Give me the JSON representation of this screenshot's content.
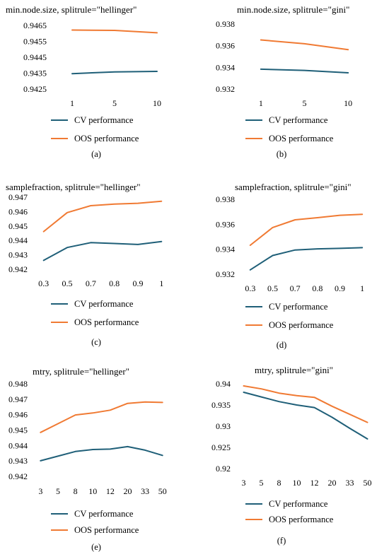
{
  "colors": {
    "cv": "#1f5f78",
    "oos": "#f07a33"
  },
  "chart_data": [
    {
      "type": "line",
      "title": "min.node.size, splitrule=\"hellinger\"",
      "categories": [
        "1",
        "5",
        "10"
      ],
      "yticks": [
        "0.9425",
        "0.9435",
        "0.9445",
        "0.9455",
        "0.9465"
      ],
      "ylim": [
        0.9425,
        0.9465
      ],
      "series": [
        {
          "name": "CV performance",
          "values": [
            0.94347,
            0.94358,
            0.94361
          ]
        },
        {
          "name": "OOS performance",
          "values": [
            0.94621,
            0.94619,
            0.94604
          ]
        }
      ],
      "caption": "(a)"
    },
    {
      "type": "line",
      "title": "min.node.size, splitrule=\"gini\"",
      "categories": [
        "1",
        "5",
        "10"
      ],
      "yticks": [
        "0.932",
        "0.934",
        "0.936",
        "0.938"
      ],
      "ylim": [
        0.932,
        0.938
      ],
      "series": [
        {
          "name": "CV performance",
          "values": [
            0.93383,
            0.93372,
            0.9335
          ]
        },
        {
          "name": "OOS performance",
          "values": [
            0.93653,
            0.93618,
            0.93563
          ]
        }
      ],
      "caption": "(b)"
    },
    {
      "type": "line",
      "title": "samplefraction, splitrule=\"hellinger\"",
      "categories": [
        "0.3",
        "0.5",
        "0.7",
        "0.8",
        "0.9",
        "1"
      ],
      "yticks": [
        "0.942",
        "0.943",
        "0.944",
        "0.945",
        "0.946",
        "0.947"
      ],
      "ylim": [
        0.942,
        0.947
      ],
      "series": [
        {
          "name": "CV performance",
          "values": [
            0.94262,
            0.94351,
            0.94385,
            0.94379,
            0.94372,
            0.94392
          ]
        },
        {
          "name": "OOS performance",
          "values": [
            0.94462,
            0.94593,
            0.94641,
            0.94652,
            0.94658,
            0.94672
          ]
        }
      ],
      "caption": "(c)"
    },
    {
      "type": "line",
      "title": "samplefraction, splitrule=\"gini\"",
      "categories": [
        "0.3",
        "0.5",
        "0.7",
        "0.8",
        "0.9",
        "1"
      ],
      "yticks": [
        "0.932",
        "0.934",
        "0.936",
        "0.938"
      ],
      "ylim": [
        0.932,
        0.938
      ],
      "series": [
        {
          "name": "CV performance",
          "values": [
            0.93235,
            0.9335,
            0.93394,
            0.93403,
            0.93407,
            0.93413
          ]
        },
        {
          "name": "OOS performance",
          "values": [
            0.93432,
            0.93574,
            0.93636,
            0.93653,
            0.93672,
            0.9368
          ]
        }
      ],
      "caption": "(d)"
    },
    {
      "type": "line",
      "title": "mtry, splitrule=\"hellinger\"",
      "categories": [
        "3",
        "5",
        "8",
        "10",
        "12",
        "20",
        "33",
        "50"
      ],
      "yticks": [
        "0.942",
        "0.943",
        "0.944",
        "0.945",
        "0.946",
        "0.947",
        "0.948"
      ],
      "ylim": [
        0.942,
        0.948
      ],
      "series": [
        {
          "name": "CV performance",
          "values": [
            0.94301,
            0.94331,
            0.94361,
            0.94374,
            0.94377,
            0.94393,
            0.9437,
            0.94336
          ]
        },
        {
          "name": "OOS performance",
          "values": [
            0.94485,
            0.94541,
            0.94598,
            0.94611,
            0.94629,
            0.94673,
            0.94682,
            0.94679
          ]
        }
      ],
      "caption": "(e)"
    },
    {
      "type": "line",
      "title": "mtry, splitrule=\"gini\"",
      "categories": [
        "3",
        "5",
        "8",
        "10",
        "12",
        "20",
        "33",
        "50"
      ],
      "yticks": [
        "0.92",
        "0.925",
        "0.93",
        "0.935",
        "0.94"
      ],
      "ylim": [
        0.92,
        0.94
      ],
      "series": [
        {
          "name": "CV performance",
          "values": [
            0.938,
            0.9369,
            0.9358,
            0.935,
            0.9344,
            0.9321,
            0.9295,
            0.927
          ]
        },
        {
          "name": "OOS performance",
          "values": [
            0.9395,
            0.9388,
            0.9378,
            0.9372,
            0.9368,
            0.9347,
            0.9328,
            0.9309
          ]
        }
      ],
      "caption": "(f)"
    }
  ]
}
